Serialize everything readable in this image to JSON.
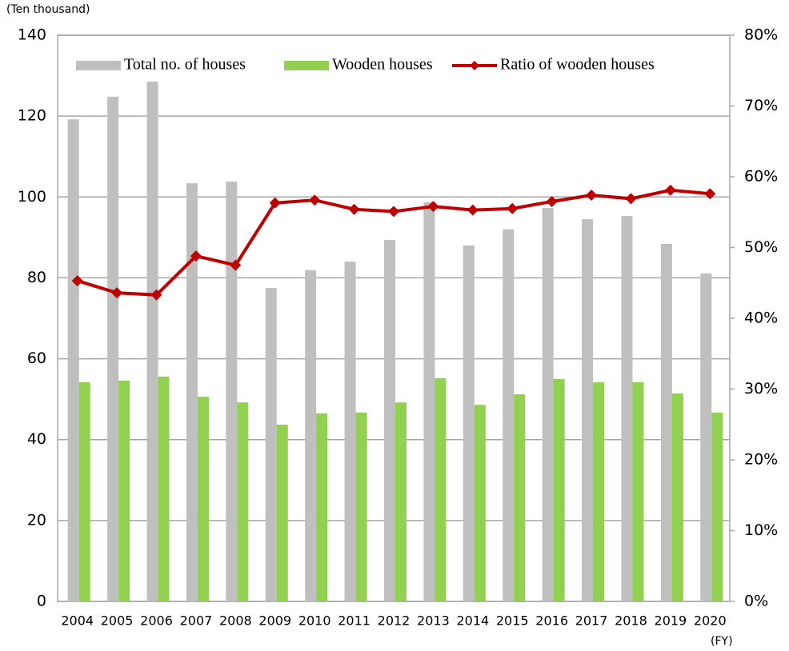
{
  "chart_data": {
    "type": "bar_line",
    "y_axis_label": "(Ten thousand)",
    "x_axis_label": "(FY)",
    "categories": [
      "2004",
      "2005",
      "2006",
      "2007",
      "2008",
      "2009",
      "2010",
      "2011",
      "2012",
      "2013",
      "2014",
      "2015",
      "2016",
      "2017",
      "2018",
      "2019",
      "2020"
    ],
    "series": [
      {
        "name": "Total no. of houses",
        "type": "bar",
        "color": "#bfbfbf",
        "values": [
          119.2,
          124.8,
          128.5,
          103.4,
          103.8,
          77.5,
          81.9,
          84.0,
          89.4,
          98.7,
          88.0,
          92.0,
          97.3,
          94.5,
          95.3,
          88.4,
          81.1
        ]
      },
      {
        "name": "Wooden houses",
        "type": "bar",
        "color": "#92d050",
        "values": [
          54.2,
          54.6,
          55.6,
          50.6,
          49.2,
          43.7,
          46.5,
          46.7,
          49.2,
          55.2,
          48.6,
          51.2,
          55.0,
          54.2,
          54.2,
          51.4,
          46.7
        ]
      },
      {
        "name": "Ratio of wooden houses",
        "type": "line",
        "axis": "y2",
        "color": "#c00000",
        "values": [
          45.3,
          43.6,
          43.3,
          48.8,
          47.5,
          56.3,
          56.7,
          55.4,
          55.1,
          55.8,
          55.3,
          55.5,
          56.5,
          57.4,
          56.9,
          58.1,
          57.6
        ]
      }
    ],
    "ylim": [
      0,
      140
    ],
    "yticks": [
      0,
      20,
      40,
      60,
      80,
      100,
      120,
      140
    ],
    "y2lim": [
      0,
      80
    ],
    "y2ticks": [
      {
        "value": 0,
        "label": "0%"
      },
      {
        "value": 10,
        "label": "10%"
      },
      {
        "value": 20,
        "label": "20%"
      },
      {
        "value": 30,
        "label": "30%"
      },
      {
        "value": 40,
        "label": "40%"
      },
      {
        "value": 50,
        "label": "50%"
      },
      {
        "value": 60,
        "label": "60%"
      },
      {
        "value": 70,
        "label": "70%"
      },
      {
        "value": 80,
        "label": "80%"
      }
    ],
    "grid": true,
    "legend": "top"
  }
}
